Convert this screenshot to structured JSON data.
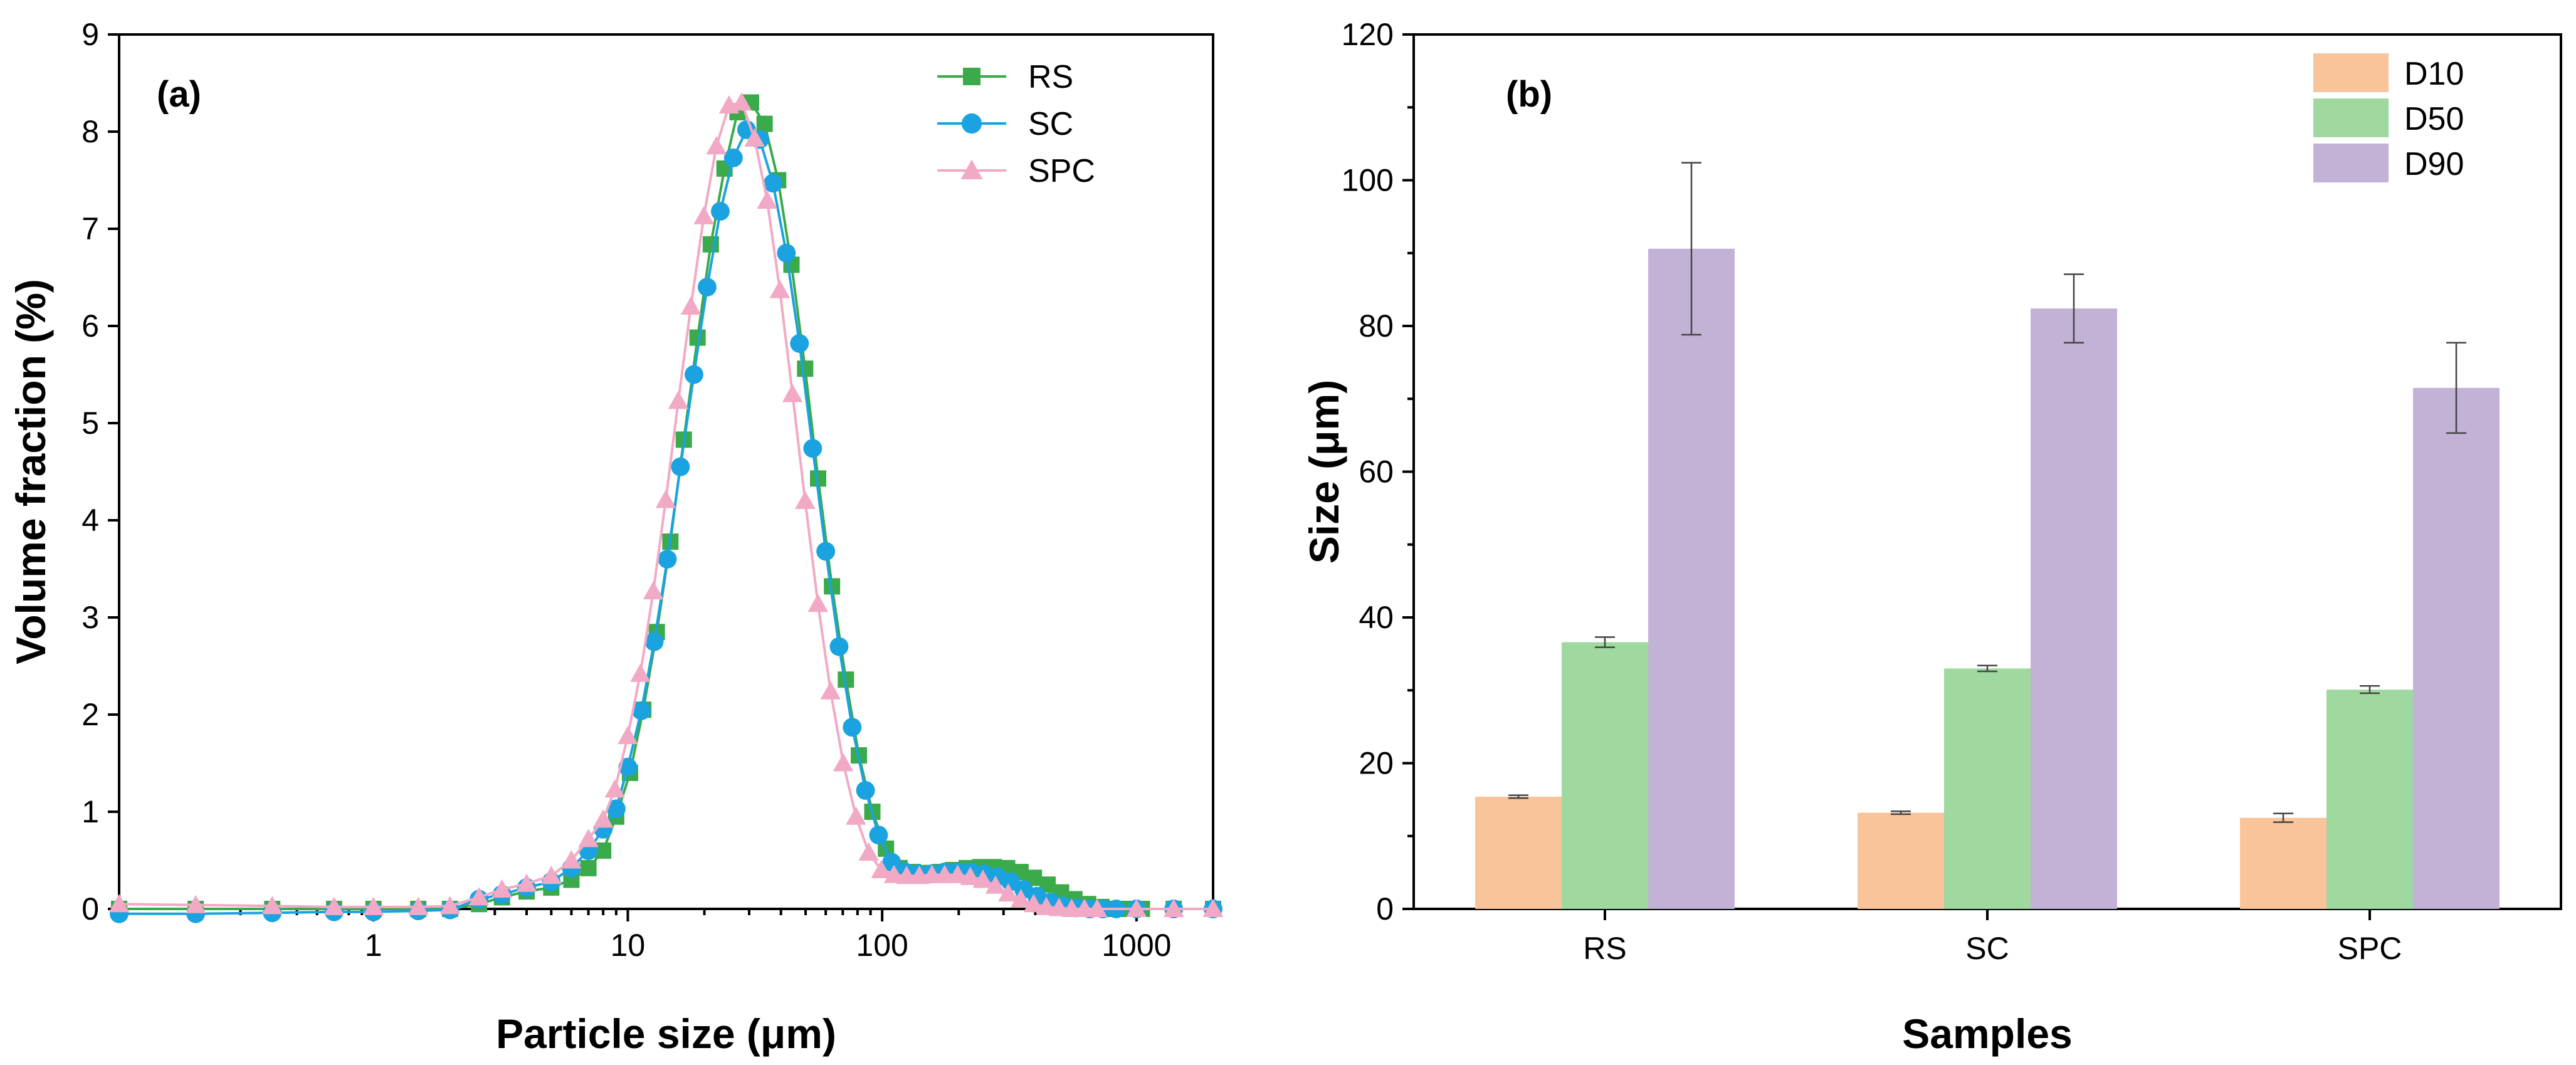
{
  "chart_data": [
    {
      "type": "line",
      "panel_label": "(a)",
      "xlabel": "Particle size (μm)",
      "ylabel": "Volume fraction (%)",
      "xscale": "log",
      "xlim": [
        0.1,
        2000
      ],
      "ylim": [
        0,
        9
      ],
      "x_ticks": [
        1,
        10,
        100,
        1000
      ],
      "x_tick_labels": [
        "1",
        "10",
        "100",
        "1000"
      ],
      "y_ticks": [
        0,
        1,
        2,
        3,
        4,
        5,
        6,
        7,
        8,
        9
      ],
      "y_tick_labels": [
        "0",
        "1",
        "2",
        "3",
        "4",
        "5",
        "6",
        "7",
        "8",
        "9"
      ],
      "legend_position": "top-right",
      "series": [
        {
          "name": "RS",
          "color": "#3aaa4a",
          "marker": "square",
          "x": [
            0.1,
            0.2,
            0.4,
            0.7,
            1.0,
            1.5,
            2.0,
            2.6,
            3.2,
            4.0,
            5.0,
            6.0,
            7.0,
            8.0,
            9.0,
            10.2,
            11.5,
            13.0,
            14.7,
            16.6,
            18.8,
            21.2,
            24.0,
            27.0,
            30.5,
            34.5,
            39.0,
            44.0,
            49.8,
            56.0,
            63.5,
            72.0,
            81.0,
            91.5,
            103.5,
            117.0,
            132.0,
            149.0,
            168.0,
            190.0,
            215.0,
            243.0,
            275.0,
            310.0,
            350.0,
            395.0,
            447.0,
            505.0,
            570.0,
            645.0,
            728.0,
            823.0,
            930.0,
            1050.0,
            1400.0,
            2000.0
          ],
          "values": [
            0,
            0,
            0,
            0,
            0,
            0,
            0,
            0.05,
            0.12,
            0.18,
            0.22,
            0.3,
            0.42,
            0.6,
            0.95,
            1.4,
            2.05,
            2.85,
            3.78,
            4.83,
            5.88,
            6.84,
            7.62,
            8.2,
            8.3,
            8.08,
            7.5,
            6.63,
            5.56,
            4.43,
            3.32,
            2.36,
            1.58,
            1.0,
            0.62,
            0.42,
            0.38,
            0.37,
            0.38,
            0.4,
            0.42,
            0.43,
            0.43,
            0.42,
            0.38,
            0.32,
            0.25,
            0.17,
            0.1,
            0.05,
            0.02,
            0,
            0,
            0,
            0,
            0
          ]
        },
        {
          "name": "SC",
          "color": "#1aa3e0",
          "marker": "circle",
          "x": [
            0.1,
            0.2,
            0.4,
            0.7,
            1.0,
            1.5,
            2.0,
            2.6,
            3.2,
            4.0,
            5.0,
            6.0,
            7.0,
            8.0,
            9.0,
            10.0,
            11.3,
            12.7,
            14.3,
            16.1,
            18.2,
            20.5,
            23.1,
            26.0,
            29.3,
            33.0,
            37.2,
            42.0,
            47.3,
            53.3,
            60.0,
            67.7,
            76.2,
            86.0,
            96.8,
            109.0,
            123.0,
            138.5,
            156.0,
            176.0,
            198.0,
            223.0,
            252.0,
            284.0,
            320.0,
            360.0,
            406.0,
            458.0,
            516.0,
            581.0,
            655.0,
            738.0,
            832.0,
            1000.0,
            1400.0,
            2000.0
          ],
          "values": [
            -0.05,
            -0.05,
            -0.04,
            -0.03,
            -0.03,
            -0.02,
            -0.01,
            0.1,
            0.15,
            0.22,
            0.28,
            0.42,
            0.6,
            0.82,
            1.03,
            1.46,
            2.04,
            2.75,
            3.6,
            4.55,
            5.5,
            6.4,
            7.18,
            7.73,
            8.02,
            7.92,
            7.47,
            6.75,
            5.82,
            4.74,
            3.68,
            2.7,
            1.87,
            1.22,
            0.76,
            0.48,
            0.38,
            0.36,
            0.36,
            0.38,
            0.38,
            0.38,
            0.36,
            0.33,
            0.28,
            0.2,
            0.13,
            0.07,
            0.03,
            0.01,
            0,
            0,
            0,
            0,
            0,
            0
          ]
        },
        {
          "name": "SPC",
          "color": "#f2a9c5",
          "marker": "triangle",
          "x": [
            0.1,
            0.2,
            0.4,
            0.7,
            1.0,
            1.5,
            2.0,
            2.6,
            3.2,
            4.0,
            5.0,
            6.0,
            7.0,
            8.0,
            8.9,
            10.0,
            11.2,
            12.6,
            14.1,
            15.8,
            17.7,
            19.9,
            22.3,
            25.0,
            28.0,
            31.5,
            35.3,
            39.6,
            44.4,
            49.8,
            55.9,
            62.7,
            70.3,
            78.9,
            88.5,
            99.2,
            111.3,
            124.8,
            140.0,
            157.0,
            176.0,
            198.0,
            222.0,
            249.0,
            279.0,
            313.0,
            351.0,
            394.0,
            442.0,
            496.0,
            556.0,
            624.0,
            700.0,
            1000.0,
            1400.0,
            2000.0
          ],
          "values": [
            0.05,
            0.04,
            0.03,
            0.02,
            0.02,
            0.02,
            0.03,
            0.12,
            0.2,
            0.26,
            0.34,
            0.5,
            0.72,
            0.92,
            1.23,
            1.78,
            2.42,
            3.27,
            4.21,
            5.23,
            6.2,
            7.13,
            7.85,
            8.27,
            8.3,
            7.93,
            7.29,
            6.37,
            5.3,
            4.2,
            3.14,
            2.24,
            1.5,
            0.95,
            0.58,
            0.4,
            0.35,
            0.34,
            0.34,
            0.35,
            0.35,
            0.35,
            0.33,
            0.3,
            0.24,
            0.16,
            0.1,
            0.05,
            0.02,
            0.01,
            0,
            0,
            0,
            0,
            0,
            0
          ]
        }
      ]
    },
    {
      "type": "bar",
      "panel_label": "(b)",
      "xlabel": "Samples",
      "ylabel": "Size (μm)",
      "ylim": [
        0,
        120
      ],
      "y_ticks": [
        0,
        20,
        40,
        60,
        80,
        100,
        120
      ],
      "y_tick_labels": [
        "0",
        "20",
        "40",
        "60",
        "80",
        "100",
        "120"
      ],
      "categories": [
        "RS",
        "SC",
        "SPC"
      ],
      "legend_position": "top-right",
      "series": [
        {
          "name": "D10",
          "color": "#f9c49a",
          "values": [
            15.4,
            13.2,
            12.5
          ],
          "errors": [
            0.2,
            0.2,
            0.6
          ]
        },
        {
          "name": "D50",
          "color": "#9fd9a0",
          "values": [
            36.6,
            33.0,
            30.1
          ],
          "errors": [
            0.7,
            0.4,
            0.5
          ]
        },
        {
          "name": "D90",
          "color": "#c2b2d6",
          "values": [
            90.6,
            82.4,
            71.5
          ],
          "errors": [
            11.8,
            4.7,
            6.2
          ]
        }
      ]
    }
  ]
}
